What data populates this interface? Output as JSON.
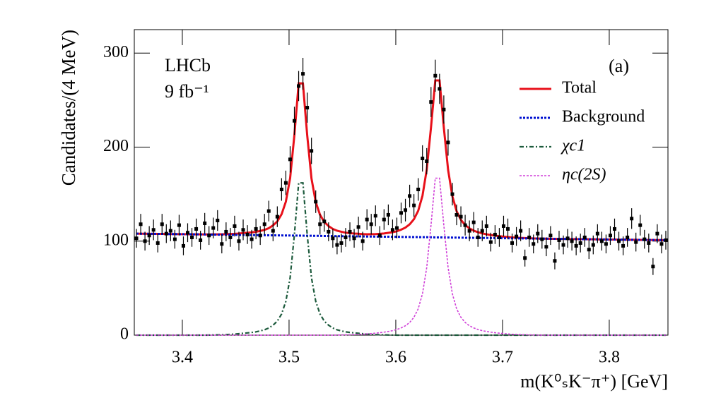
{
  "chart_data": {
    "type": "line",
    "xlabel": "m(K⁰ₛK⁻π⁺) [GeV]",
    "ylabel": "Candidates/(4 MeV)",
    "annotations": [
      "LHCb",
      "9 fb⁻¹",
      "(a)"
    ],
    "legend": "upper right",
    "xlim": [
      3.355,
      3.855
    ],
    "ylim": [
      0,
      325
    ],
    "xticks": [
      3.4,
      3.5,
      3.6,
      3.7,
      3.8
    ],
    "yticks": [
      0,
      100,
      200,
      300
    ],
    "x": [
      3.357,
      3.361,
      3.365,
      3.369,
      3.373,
      3.377,
      3.381,
      3.385,
      3.389,
      3.393,
      3.397,
      3.401,
      3.405,
      3.409,
      3.413,
      3.417,
      3.421,
      3.425,
      3.429,
      3.433,
      3.437,
      3.441,
      3.445,
      3.449,
      3.453,
      3.457,
      3.461,
      3.465,
      3.469,
      3.473,
      3.477,
      3.481,
      3.485,
      3.489,
      3.493,
      3.497,
      3.501,
      3.505,
      3.509,
      3.513,
      3.517,
      3.521,
      3.525,
      3.529,
      3.533,
      3.537,
      3.541,
      3.545,
      3.549,
      3.553,
      3.557,
      3.561,
      3.565,
      3.569,
      3.573,
      3.577,
      3.581,
      3.585,
      3.589,
      3.593,
      3.597,
      3.601,
      3.605,
      3.609,
      3.613,
      3.617,
      3.621,
      3.625,
      3.629,
      3.633,
      3.637,
      3.641,
      3.645,
      3.649,
      3.653,
      3.657,
      3.661,
      3.665,
      3.669,
      3.673,
      3.677,
      3.681,
      3.685,
      3.689,
      3.693,
      3.697,
      3.701,
      3.705,
      3.709,
      3.713,
      3.717,
      3.721,
      3.725,
      3.729,
      3.733,
      3.737,
      3.741,
      3.745,
      3.749,
      3.753,
      3.757,
      3.761,
      3.765,
      3.769,
      3.773,
      3.777,
      3.781,
      3.785,
      3.789,
      3.793,
      3.797,
      3.801,
      3.805,
      3.809,
      3.813,
      3.817,
      3.821,
      3.825,
      3.829,
      3.833,
      3.837,
      3.841,
      3.845,
      3.849,
      3.853
    ],
    "points": {
      "color": "#000000",
      "values": [
        103,
        118,
        100,
        106,
        112,
        98,
        118,
        108,
        111,
        102,
        117,
        95,
        109,
        104,
        113,
        101,
        119,
        106,
        114,
        122,
        97,
        110,
        104,
        116,
        100,
        112,
        107,
        102,
        113,
        106,
        118,
        132,
        111,
        126,
        155,
        162,
        187,
        228,
        265,
        278,
        242,
        196,
        142,
        118,
        121,
        110,
        103,
        96,
        98,
        104,
        110,
        103,
        115,
        100,
        123,
        118,
        127,
        106,
        123,
        128,
        112,
        114,
        130,
        133,
        148,
        138,
        155,
        188,
        185,
        248,
        276,
        262,
        240,
        205,
        150,
        128,
        126,
        117,
        111,
        120,
        104,
        111,
        116,
        99,
        107,
        104,
        116,
        113,
        98,
        105,
        111,
        82,
        104,
        97,
        108,
        102,
        94,
        106,
        79,
        101,
        96,
        103,
        100,
        95,
        98,
        104,
        91,
        96,
        108,
        100,
        97,
        106,
        113,
        100,
        95,
        104,
        124,
        99,
        117,
        102,
        98,
        73,
        108,
        97,
        101
      ],
      "errors": [
        10,
        11,
        10,
        10,
        11,
        10,
        11,
        10,
        11,
        10,
        11,
        10,
        10,
        10,
        11,
        10,
        11,
        10,
        11,
        11,
        10,
        10,
        10,
        11,
        10,
        11,
        10,
        10,
        11,
        10,
        11,
        11,
        11,
        11,
        12,
        13,
        14,
        15,
        16,
        17,
        16,
        14,
        12,
        11,
        11,
        10,
        10,
        10,
        10,
        10,
        10,
        10,
        11,
        10,
        11,
        11,
        11,
        10,
        11,
        11,
        11,
        11,
        11,
        12,
        12,
        12,
        12,
        14,
        14,
        16,
        17,
        16,
        15,
        14,
        12,
        11,
        11,
        11,
        11,
        11,
        10,
        11,
        11,
        10,
        10,
        10,
        11,
        11,
        10,
        10,
        11,
        9,
        10,
        10,
        10,
        10,
        10,
        10,
        9,
        10,
        10,
        10,
        10,
        10,
        10,
        10,
        10,
        10,
        10,
        10,
        10,
        10,
        11,
        10,
        10,
        10,
        11,
        10,
        11,
        10,
        10,
        9,
        10,
        10,
        10
      ]
    },
    "series": [
      {
        "name": "Total",
        "color": "#e8101a",
        "style": "solid",
        "values": [
          108.0,
          107.9,
          107.9,
          107.8,
          107.8,
          107.7,
          107.7,
          107.6,
          107.5,
          107.5,
          107.4,
          107.4,
          107.3,
          107.3,
          107.2,
          107.2,
          107.1,
          107.1,
          107.2,
          107.2,
          107.3,
          107.4,
          107.6,
          107.8,
          108.1,
          108.6,
          108.9,
          109.4,
          109.9,
          110.9,
          112.0,
          113.8,
          116.8,
          121.0,
          128.6,
          142.0,
          167.0,
          212.9,
          267.9,
          267.8,
          212.7,
          166.7,
          141.6,
          128.1,
          120.4,
          116.1,
          113.0,
          111.1,
          110.0,
          109.0,
          108.5,
          108.1,
          107.9,
          107.5,
          107.3,
          107.4,
          107.5,
          107.8,
          108.2,
          108.8,
          109.5,
          110.6,
          112.2,
          114.4,
          117.9,
          123.3,
          132.3,
          148.2,
          176.2,
          221.1,
          271.0,
          271.0,
          220.9,
          175.9,
          147.8,
          131.8,
          122.7,
          117.1,
          113.6,
          111.2,
          109.5,
          108.2,
          107.3,
          106.5,
          105.9,
          105.3,
          104.8,
          104.4,
          104.0,
          103.8,
          103.5,
          103.3,
          103.1,
          102.9,
          102.8,
          102.6,
          102.6,
          102.5,
          102.5,
          102.4,
          102.4,
          102.3,
          102.2,
          102.2,
          102.1,
          102.1,
          102.0,
          102.0,
          101.9,
          101.8,
          101.8,
          101.7,
          101.7,
          101.6,
          101.6,
          101.5,
          101.4,
          101.4,
          101.3,
          101.3,
          101.2,
          101.2,
          101.1,
          101.1,
          101.0
        ]
      },
      {
        "name": "Background",
        "color": "#0010d0",
        "style": "dotted",
        "values": [
          108.0,
          107.9,
          107.9,
          107.8,
          107.8,
          107.7,
          107.7,
          107.6,
          107.5,
          107.5,
          107.4,
          107.4,
          107.3,
          107.3,
          107.2,
          107.2,
          107.1,
          107.0,
          107.0,
          106.9,
          106.9,
          106.8,
          106.8,
          106.7,
          106.6,
          106.6,
          106.5,
          106.5,
          106.4,
          106.4,
          106.3,
          106.2,
          106.2,
          106.1,
          106.1,
          106.0,
          106.0,
          105.9,
          105.9,
          105.8,
          105.7,
          105.7,
          105.6,
          105.6,
          105.5,
          105.5,
          105.4,
          105.3,
          105.3,
          105.2,
          105.2,
          105.1,
          105.1,
          105.0,
          104.9,
          104.9,
          104.8,
          104.8,
          104.7,
          104.7,
          104.6,
          104.6,
          104.5,
          104.4,
          104.4,
          104.3,
          104.3,
          104.2,
          104.2,
          104.1,
          104.0,
          104.0,
          103.9,
          103.9,
          103.8,
          103.8,
          103.7,
          103.6,
          103.6,
          103.5,
          103.5,
          103.4,
          103.4,
          103.3,
          103.3,
          103.2,
          103.1,
          103.1,
          103.0,
          103.0,
          102.9,
          102.9,
          102.8,
          102.7,
          102.7,
          102.6,
          102.6,
          102.5,
          102.5,
          102.4,
          102.4,
          102.3,
          102.2,
          102.2,
          102.1,
          102.1,
          102.0,
          102.0,
          101.9,
          101.8,
          101.8,
          101.7,
          101.7,
          101.6,
          101.6,
          101.5,
          101.4,
          101.4,
          101.3,
          101.3,
          101.2,
          101.2,
          101.1,
          101.1,
          101.0
        ]
      },
      {
        "name": "χc1",
        "color": "#1c5a3c",
        "style": "dashdot",
        "values": [
          0,
          0,
          0,
          0,
          0,
          0,
          0,
          0,
          0,
          0,
          0,
          0,
          0,
          0,
          0,
          0,
          0,
          0.1,
          0.2,
          0.3,
          0.4,
          0.6,
          0.8,
          1.1,
          1.5,
          2.0,
          2.4,
          2.9,
          3.5,
          4.5,
          5.7,
          7.6,
          10.6,
          14.9,
          22.5,
          36,
          61,
          107,
          162,
          162,
          107,
          61,
          36,
          22.5,
          14.9,
          10.6,
          7.6,
          5.7,
          4.5,
          3.5,
          2.9,
          2.4,
          2.0,
          1.5,
          1.1,
          0.8,
          0.6,
          0.4,
          0.3,
          0.2,
          0.1,
          0,
          0,
          0,
          0,
          0,
          0,
          0,
          0,
          0,
          0,
          0,
          0,
          0,
          0,
          0,
          0,
          0,
          0,
          0,
          0,
          0,
          0,
          0,
          0,
          0,
          0,
          0,
          0,
          0,
          0,
          0,
          0,
          0,
          0,
          0,
          0,
          0,
          0,
          0,
          0,
          0,
          0,
          0,
          0,
          0,
          0,
          0,
          0,
          0,
          0,
          0,
          0,
          0,
          0,
          0,
          0,
          0,
          0,
          0,
          0,
          0,
          0,
          0,
          0
        ]
      },
      {
        "name": "ηc(2S)",
        "color": "#d040d8",
        "style": "dotted",
        "values": [
          0,
          0,
          0,
          0,
          0,
          0,
          0,
          0,
          0,
          0,
          0,
          0,
          0,
          0,
          0,
          0,
          0,
          0,
          0,
          0,
          0,
          0,
          0,
          0,
          0,
          0,
          0,
          0,
          0,
          0,
          0,
          0,
          0,
          0,
          0,
          0,
          0,
          0,
          0,
          0,
          0,
          0,
          0,
          0,
          0,
          0,
          0,
          0.1,
          0.2,
          0.3,
          0.4,
          0.6,
          0.8,
          1.0,
          1.3,
          1.7,
          2.1,
          2.6,
          3.2,
          3.9,
          4.8,
          6.0,
          7.7,
          10,
          13.5,
          19,
          28,
          44,
          72,
          117,
          167,
          167,
          117,
          72,
          44,
          28,
          19,
          13.5,
          10,
          7.7,
          6.0,
          4.8,
          3.9,
          3.2,
          2.6,
          2.1,
          1.7,
          1.3,
          1.0,
          0.8,
          0.6,
          0.4,
          0.3,
          0.2,
          0.1,
          0,
          0,
          0,
          0,
          0,
          0,
          0,
          0,
          0,
          0,
          0,
          0,
          0,
          0,
          0,
          0,
          0,
          0,
          0,
          0,
          0,
          0,
          0,
          0,
          0,
          0,
          0,
          0,
          0,
          0
        ]
      }
    ]
  }
}
